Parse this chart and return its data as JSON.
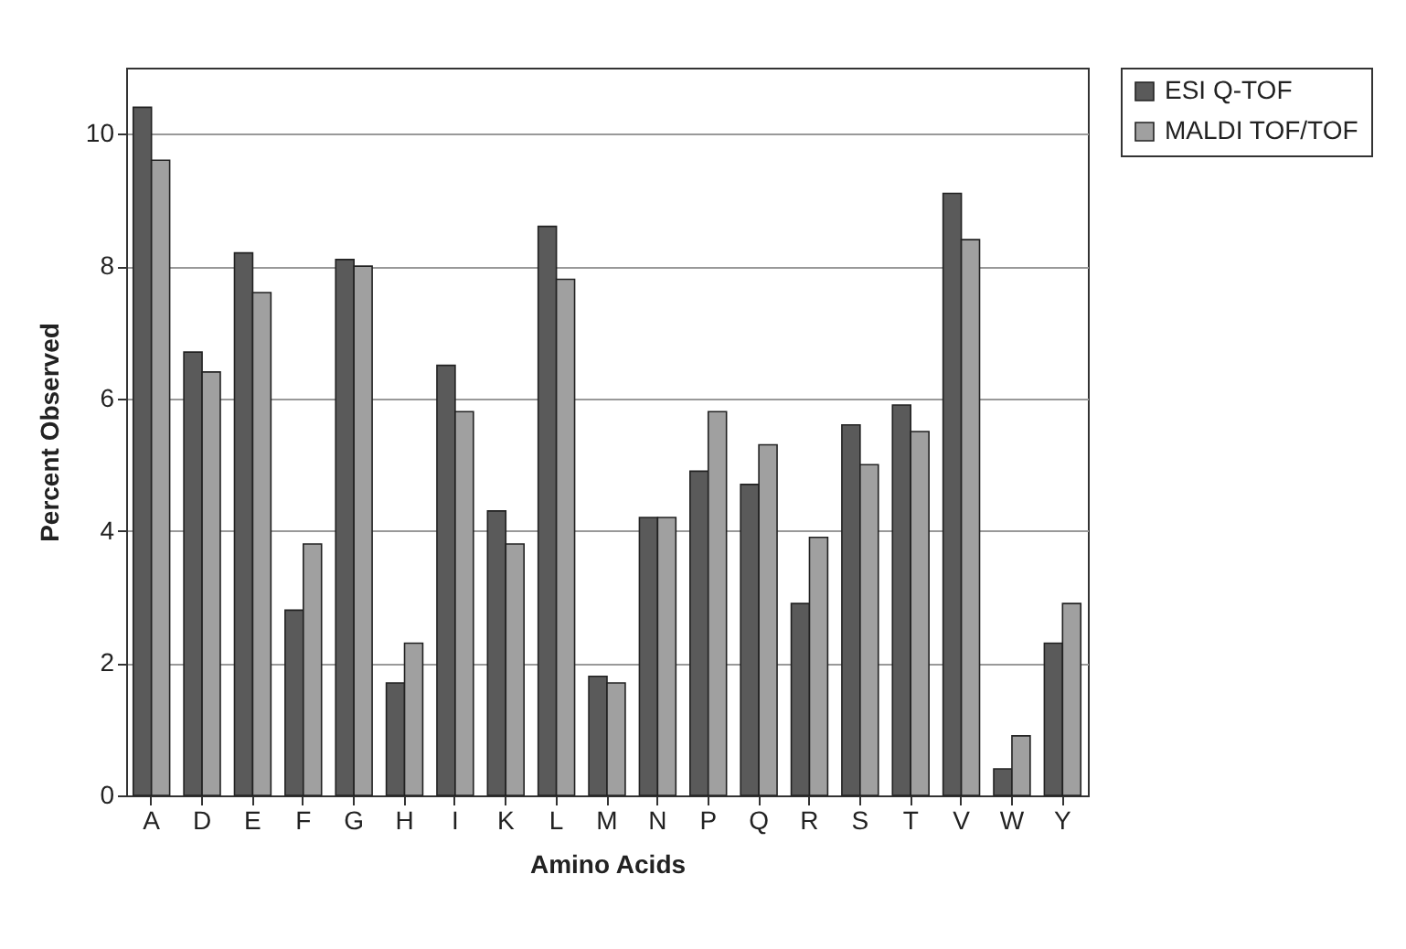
{
  "chart_data": {
    "type": "bar",
    "xlabel": "Amino Acids",
    "ylabel": "Percent Observed",
    "categories": [
      "A",
      "D",
      "E",
      "F",
      "G",
      "H",
      "I",
      "K",
      "L",
      "M",
      "N",
      "P",
      "Q",
      "R",
      "S",
      "T",
      "V",
      "W",
      "Y"
    ],
    "series": [
      {
        "name": "ESI Q-TOF",
        "color": "#5a5a5a",
        "values": [
          10.4,
          6.7,
          8.2,
          2.8,
          8.1,
          1.7,
          6.5,
          4.3,
          8.6,
          1.8,
          4.2,
          4.9,
          4.7,
          2.9,
          5.6,
          5.9,
          9.1,
          0.4,
          2.3
        ]
      },
      {
        "name": "MALDI TOF/TOF",
        "color": "#a0a0a0",
        "values": [
          9.6,
          6.4,
          7.6,
          3.8,
          8.0,
          2.3,
          5.8,
          3.8,
          7.8,
          1.7,
          4.2,
          5.8,
          5.3,
          3.9,
          5.0,
          5.5,
          8.4,
          0.9,
          2.9
        ]
      }
    ],
    "ylim": [
      0,
      11
    ],
    "yticks": [
      0,
      2,
      4,
      6,
      8,
      10
    ],
    "grid": "y",
    "legend": "right"
  }
}
